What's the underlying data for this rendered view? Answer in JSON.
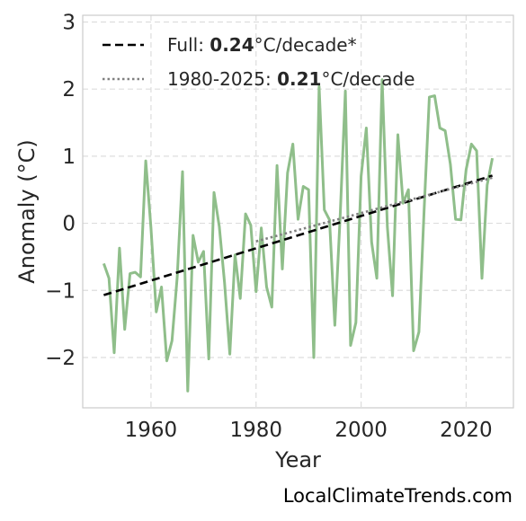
{
  "chart_data": {
    "type": "line",
    "xlabel": "Year",
    "ylabel": "Anomaly (°C)",
    "xlim": [
      1947,
      2029
    ],
    "ylim": [
      -2.75,
      3.1
    ],
    "x_ticks": [
      1960,
      1980,
      2000,
      2020
    ],
    "y_ticks": [
      3,
      2,
      1,
      0,
      -1,
      -2
    ],
    "y_tick_labels": [
      "3",
      "2",
      "1",
      "0",
      "−1",
      "−2"
    ],
    "grid": true,
    "legend_position": "top-left",
    "series": [
      {
        "role": "anomaly",
        "color": "#8fbe8a",
        "x": [
          1951,
          1952,
          1953,
          1954,
          1955,
          1956,
          1957,
          1958,
          1959,
          1960,
          1961,
          1962,
          1963,
          1964,
          1965,
          1966,
          1967,
          1968,
          1969,
          1970,
          1971,
          1972,
          1973,
          1974,
          1975,
          1976,
          1977,
          1978,
          1979,
          1980,
          1981,
          1982,
          1983,
          1984,
          1985,
          1986,
          1987,
          1988,
          1989,
          1990,
          1991,
          1992,
          1993,
          1994,
          1995,
          1996,
          1997,
          1998,
          1999,
          2000,
          2001,
          2002,
          2003,
          2004,
          2005,
          2006,
          2007,
          2008,
          2009,
          2010,
          2011,
          2012,
          2013,
          2014,
          2015,
          2016,
          2017,
          2018,
          2019,
          2020,
          2021,
          2022,
          2023,
          2024,
          2025
        ],
        "y": [
          -0.6,
          -0.82,
          -1.93,
          -0.37,
          -1.58,
          -0.75,
          -0.73,
          -0.8,
          0.93,
          -0.07,
          -1.32,
          -0.95,
          -2.05,
          -1.75,
          -0.8,
          0.77,
          -2.5,
          -0.18,
          -0.58,
          -0.42,
          -2.02,
          0.46,
          -0.05,
          -0.88,
          -1.95,
          -0.47,
          -1.12,
          0.14,
          -0.03,
          -1.02,
          -0.07,
          -0.95,
          -1.25,
          0.86,
          -0.68,
          0.75,
          1.18,
          0.06,
          0.55,
          0.5,
          -2.0,
          2.04,
          0.2,
          0.05,
          -1.52,
          0.07,
          1.97,
          -1.82,
          -1.48,
          0.7,
          1.42,
          -0.28,
          -0.82,
          2.14,
          -0.05,
          -1.08,
          1.32,
          0.3,
          0.5,
          -1.9,
          -1.62,
          0.2,
          1.88,
          1.9,
          1.42,
          1.38,
          0.88,
          0.06,
          0.05,
          0.8,
          1.18,
          1.08,
          -0.82,
          0.57,
          0.97
        ]
      },
      {
        "role": "full-trend",
        "color": "#000000",
        "x": [
          1951,
          2025
        ],
        "y": [
          -1.07,
          0.71
        ]
      },
      {
        "role": "recent-trend",
        "color": "#808080",
        "x": [
          1980,
          2025
        ],
        "y": [
          -0.27,
          0.68
        ]
      }
    ]
  },
  "legend": {
    "items": [
      {
        "prefix": "Full: ",
        "value": "0.24",
        "suffix": "°C/decade*",
        "color": "#000000",
        "style": "dashed"
      },
      {
        "prefix": "1980-2025: ",
        "value": "0.21",
        "suffix": "°C/decade",
        "color": "#808080",
        "style": "dotted"
      }
    ]
  },
  "watermark": "LocalClimateTrends.com"
}
